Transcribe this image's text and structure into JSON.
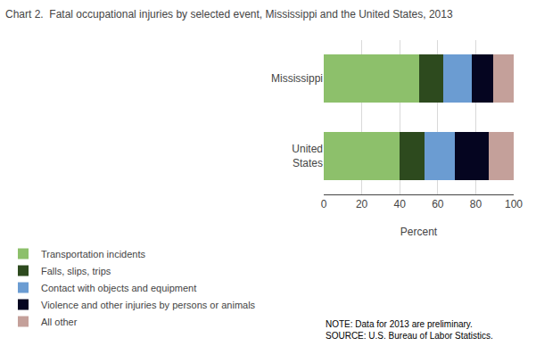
{
  "chart_data": {
    "type": "bar",
    "orientation": "horizontal",
    "stacked": true,
    "title": "Chart 2.  Fatal occupational injuries by selected event, Mississippi and the United States, 2013",
    "xlabel": "Percent",
    "categories": [
      "Mississippi",
      "United\nStates"
    ],
    "series": [
      {
        "name": "Transportation incidents",
        "color": "#8DC06B",
        "values": [
          50,
          40
        ]
      },
      {
        "name": "Falls, slips, trips",
        "color": "#2D4A1E",
        "values": [
          13,
          13
        ]
      },
      {
        "name": "Contact with objects and equipment",
        "color": "#6B9CD2",
        "values": [
          15,
          16
        ]
      },
      {
        "name": "Violence and other injuries by persons or animals",
        "color": "#050520",
        "values": [
          11,
          18
        ]
      },
      {
        "name": "All other",
        "color": "#C4A09A",
        "values": [
          11,
          13
        ]
      }
    ],
    "xlim": [
      0,
      100
    ],
    "xticks": [
      0,
      20,
      40,
      60,
      80,
      100
    ],
    "grid": true,
    "legend": "bottom",
    "annotations": [
      "NOTE: Data for 2013 are preliminary.\nSOURCE: U.S. Bureau of Labor Statistics."
    ]
  }
}
